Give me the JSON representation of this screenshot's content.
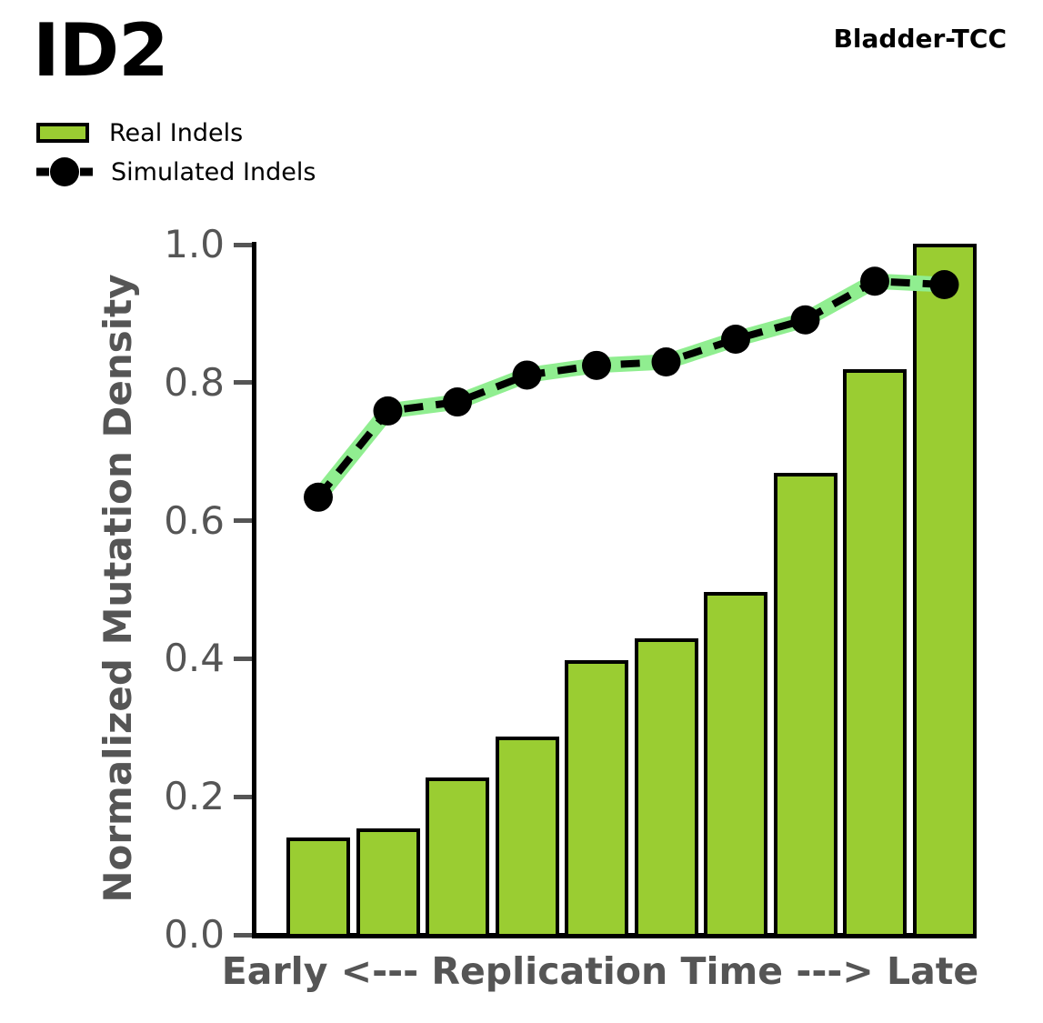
{
  "header": {
    "title": "ID2",
    "cohort": "Bladder-TCC"
  },
  "legend": [
    {
      "label": "Real Indels",
      "marker": "filled-bar-swatch"
    },
    {
      "label": "Simulated Indels",
      "marker": "dot-on-dashed-line"
    }
  ],
  "chart_data": {
    "type": "bar",
    "title": "ID2",
    "annotation": "Bladder-TCC",
    "xlabel": "Early <--- Replication Time ---> Late",
    "ylabel": "Normalized Mutation Density",
    "ylim": [
      0.0,
      1.0
    ],
    "yticks": [
      0.0,
      0.2,
      0.4,
      0.6,
      0.8,
      1.0
    ],
    "grid": false,
    "n_bins": 10,
    "legend_position": "upper-left-outside",
    "series": [
      {
        "name": "Real Indels",
        "type": "bar",
        "color": "#9ACD32",
        "edge_color": "#000000",
        "values": [
          0.139,
          0.153,
          0.227,
          0.286,
          0.396,
          0.428,
          0.496,
          0.668,
          0.818,
          1.0
        ]
      },
      {
        "name": "Simulated Indels",
        "type": "line",
        "line_style": "dashed",
        "marker": "circle",
        "color": "#000000",
        "underlay_color": "#90EE90",
        "values": [
          0.634,
          0.759,
          0.772,
          0.811,
          0.825,
          0.83,
          0.863,
          0.891,
          0.947,
          0.942
        ]
      }
    ]
  },
  "colors": {
    "background": "#FFFFFF",
    "bar_fill": "#9ACD32",
    "line_underlay": "#90EE90",
    "line_and_marker": "#000000",
    "axis_text": "#555555",
    "spine": "#000000"
  }
}
